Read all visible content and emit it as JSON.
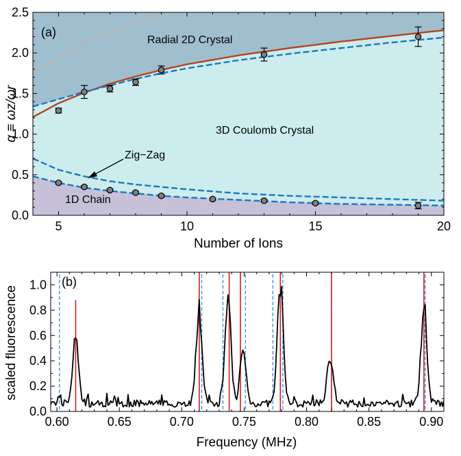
{
  "chart_data": [
    {
      "id": "a",
      "type": "scatter",
      "panel_label": "(a)",
      "xlabel": "Number of Ions",
      "ylabel": "α ≡ ωz/ωr",
      "xlim": [
        4,
        20
      ],
      "ylim": [
        0.0,
        2.5
      ],
      "xticks": [
        5,
        10,
        15,
        20
      ],
      "yticks": [
        0.0,
        0.5,
        1.0,
        1.5,
        2.0,
        2.5
      ],
      "xtick_labels": [
        "5",
        "10",
        "15",
        "20"
      ],
      "ytick_labels": [
        "0.0",
        "0.5",
        "1.0",
        "1.5",
        "2.0",
        "2.5"
      ],
      "regions": [
        {
          "label": "Radial 2D Crystal",
          "color": "#9fbfcf"
        },
        {
          "label": "3D Coulomb Crystal",
          "color": "#cdeced"
        },
        {
          "label": "1D Chain",
          "color": "#c6c1d8"
        }
      ],
      "annotation": {
        "text": "Zig−Zag"
      },
      "colors": {
        "upper_solid": "#b5441f",
        "dashed": "#1a78c2",
        "dotted": "#e0a07e",
        "markers": "#808080"
      },
      "series": [
        {
          "style": "markers-with-errorbars",
          "x": [
            5,
            6,
            7,
            8,
            9,
            13,
            19
          ],
          "y": [
            1.29,
            1.52,
            1.56,
            1.64,
            1.79,
            1.98,
            2.2
          ],
          "yerr": [
            0.03,
            0.08,
            0.04,
            0.04,
            0.05,
            0.08,
            0.12
          ]
        },
        {
          "style": "markers-with-errorbars",
          "x": [
            5,
            6,
            7,
            8,
            9,
            11,
            13,
            15,
            19
          ],
          "y": [
            0.4,
            0.35,
            0.31,
            0.28,
            0.24,
            0.2,
            0.18,
            0.15,
            0.12
          ],
          "yerr": [
            0.015,
            0.015,
            0.015,
            0.015,
            0.015,
            0.015,
            0.015,
            0.015,
            0.04
          ]
        },
        {
          "style": "solid",
          "x": [
            4,
            5,
            6,
            7,
            8,
            9,
            10,
            12,
            14,
            16,
            18,
            20
          ],
          "y": [
            1.21,
            1.38,
            1.51,
            1.62,
            1.71,
            1.79,
            1.86,
            1.97,
            2.06,
            2.14,
            2.21,
            2.28
          ]
        },
        {
          "style": "dashed",
          "x": [
            4,
            5,
            6,
            7,
            8,
            9,
            10,
            12,
            14,
            16,
            18,
            20
          ],
          "y": [
            1.34,
            1.43,
            1.52,
            1.6,
            1.68,
            1.75,
            1.81,
            1.91,
            1.99,
            2.06,
            2.13,
            2.19
          ]
        },
        {
          "style": "dashed",
          "x": [
            4,
            5,
            6,
            7,
            8,
            9,
            10,
            12,
            14,
            16,
            18,
            20
          ],
          "y": [
            0.7,
            0.56,
            0.48,
            0.42,
            0.38,
            0.35,
            0.32,
            0.27,
            0.24,
            0.22,
            0.2,
            0.18
          ]
        },
        {
          "style": "dashed",
          "x": [
            4,
            5,
            6,
            7,
            8,
            9,
            10,
            12,
            14,
            16,
            18,
            20
          ],
          "y": [
            0.48,
            0.4,
            0.34,
            0.3,
            0.27,
            0.24,
            0.22,
            0.19,
            0.16,
            0.14,
            0.13,
            0.12
          ]
        },
        {
          "style": "dotted",
          "x": [
            4,
            5,
            6,
            7,
            8,
            9
          ],
          "y": [
            1.75,
            1.95,
            2.12,
            2.26,
            2.38,
            2.5
          ]
        }
      ]
    },
    {
      "id": "b",
      "type": "line",
      "panel_label": "(b)",
      "xlabel": "Frequency (MHz)",
      "ylabel": "scaled fluorescence",
      "xlim": [
        0.595,
        0.91
      ],
      "ylim": [
        0.0,
        1.1
      ],
      "xticks": [
        0.6,
        0.65,
        0.7,
        0.75,
        0.8,
        0.85,
        0.9
      ],
      "yticks": [
        0.0,
        0.2,
        0.4,
        0.6,
        0.8,
        1.0
      ],
      "xtick_labels": [
        "0.60",
        "0.65",
        "0.70",
        "0.75",
        "0.80",
        "0.85",
        "0.90"
      ],
      "ytick_labels": [
        "0.0",
        "0.2",
        "0.4",
        "0.6",
        "0.8",
        "1.0"
      ],
      "colors": {
        "spectrum": "#000000",
        "red_lines": "#cc1f1f",
        "blue_lines": "#3a8fd0"
      },
      "red_lines": [
        {
          "x": 0.615,
          "y": 0.88
        },
        {
          "x": 0.714,
          "y": 1.1
        },
        {
          "x": 0.738,
          "y": 1.1
        },
        {
          "x": 0.747,
          "y": 1.1
        },
        {
          "x": 0.779,
          "y": 1.1
        },
        {
          "x": 0.82,
          "y": 1.1
        },
        {
          "x": 0.894,
          "y": 1.1
        }
      ],
      "blue_lines": [
        0.602,
        0.716,
        0.733,
        0.751,
        0.773,
        0.781,
        0.82,
        0.895
      ],
      "peaks": [
        {
          "x": 0.615,
          "y": 0.55
        },
        {
          "x": 0.714,
          "y": 0.78
        },
        {
          "x": 0.737,
          "y": 0.88
        },
        {
          "x": 0.749,
          "y": 0.45
        },
        {
          "x": 0.779,
          "y": 0.99
        },
        {
          "x": 0.819,
          "y": 0.41
        },
        {
          "x": 0.894,
          "y": 0.8
        }
      ]
    }
  ]
}
